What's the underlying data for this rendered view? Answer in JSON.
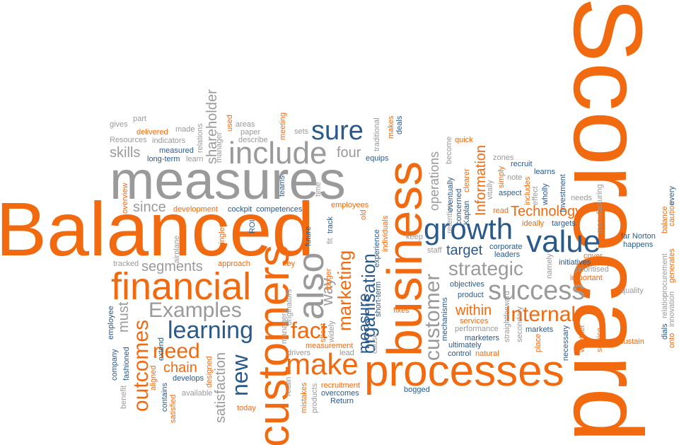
{
  "colors": {
    "orange": "#f26a10",
    "grey": "#9a9a9a",
    "blue": "#2a5a8a",
    "light_grey": "#b4b4b4"
  },
  "words": {
    "balanced": "Balanced",
    "scorecard": "Scorecard",
    "measures": "measures",
    "business": "business",
    "processes": "processes",
    "customers": "customers",
    "financial": "financial",
    "include": "include",
    "sure": "sure",
    "growth": "growth",
    "value": "value",
    "success": "success",
    "strategic": "strategic",
    "also": "also",
    "make": "make",
    "fact": "fact",
    "learning": "learning",
    "examples": "Examples",
    "internal": "Internal",
    "customer": "customer",
    "organisation": "organisation",
    "marketing": "marketing",
    "measure": "measure",
    "need": "need",
    "new": "new",
    "outcomes": "outcomes",
    "technology": "Technology",
    "information": "Information",
    "target": "target",
    "operations": "operations",
    "chain": "chain",
    "within": "within",
    "satisfaction": "satisfaction",
    "shareholder": "shareholder",
    "skills": "skills",
    "four": "four",
    "since": "since",
    "segments": "segments",
    "must": "must",
    "way": "way",
    "gives": "gives",
    "part": "part",
    "made": "made",
    "delivered": "delivered",
    "resources": "Resources",
    "indicators": "indicators",
    "measured": "measured",
    "long_term": "long-term",
    "learn": "learn",
    "relations": "relations",
    "manager": "manager",
    "used": "used",
    "describe": "describe",
    "areas": "areas",
    "paper": "paper",
    "meeting": "meeting",
    "sets": "sets",
    "traditional": "traditional",
    "makes": "makes",
    "deals": "deals",
    "equips": "equips",
    "teams": "teams",
    "time": "time",
    "overview": "overview",
    "development": "development",
    "cockpit": "cockpit",
    "competences": "competences",
    "employees": "employees",
    "single": "single",
    "airplane": "airplane",
    "future": "future",
    "track": "track",
    "fit": "fit",
    "old": "old",
    "individuals": "individuals",
    "experience": "experience",
    "short_term": "short-term",
    "fixes": "fixes",
    "cause": "cause",
    "tracked": "tracked",
    "approach": "approach",
    "key": "key",
    "roi": "ROI",
    "originators": "originators",
    "longer": "longer",
    "sheet": "sheet",
    "widely": "widely",
    "managers": "managers",
    "measurement": "measurement",
    "drivers": "drivers",
    "lead": "lead",
    "mistakes": "mistakes",
    "products": "products",
    "recruitment": "recruitment",
    "overcomes": "overcomes",
    "return": "Return",
    "retain": "retain",
    "today": "today",
    "available": "available",
    "develops": "develops",
    "designed": "designed",
    "contains": "contains",
    "satisfied": "satisfied",
    "aligned": "aligned",
    "extend": "extend",
    "fashioned": "fashioned",
    "company": "company",
    "employee": "employee",
    "benefit": "benefit",
    "bogged": "bogged",
    "natural": "natural",
    "control": "control",
    "marketers": "marketers",
    "performance": "performance",
    "services": "services",
    "ultimately": "ultimately",
    "mechanisms": "mechanisms",
    "objectives": "objectives",
    "product": "product",
    "staff": "staff",
    "keep": "keep",
    "eventually": "eventually",
    "concerned": "concerned",
    "retention": "retention",
    "become": "become",
    "quick": "quick",
    "clearer": "clearer",
    "kaplan": "Kaplan",
    "vitally": "vitally",
    "simply": "simply",
    "zones": "zones",
    "recruit": "recruit",
    "note": "note",
    "learns": "learns",
    "includes": "includes",
    "effect": "effect",
    "aspect": "aspect",
    "wholly": "wholly",
    "investment": "Investment",
    "read": "read",
    "ideally": "ideally",
    "targets": "targets",
    "corporate": "corporate",
    "leaders": "leaders",
    "namely": "namely",
    "initiatives": "initiatives",
    "prioritised": "prioritised",
    "important": "important",
    "cover": "cover",
    "needs": "needs",
    "manufacturing": "manufacturing",
    "far_norton": "far Norton",
    "happens": "happens",
    "quality": "quality",
    "procurement": "procurement",
    "generates": "generates",
    "balance": "balance",
    "caution": "caution",
    "every": "every",
    "relation": "relation",
    "innovation": "innovation",
    "dials": "dials",
    "onto": "onto",
    "sustain": "sustain",
    "service": "service",
    "whether": "whether",
    "necessary": "necessary",
    "markets": "markets",
    "place": "place",
    "secondary": "secondary",
    "straightforward": "straightforward"
  }
}
